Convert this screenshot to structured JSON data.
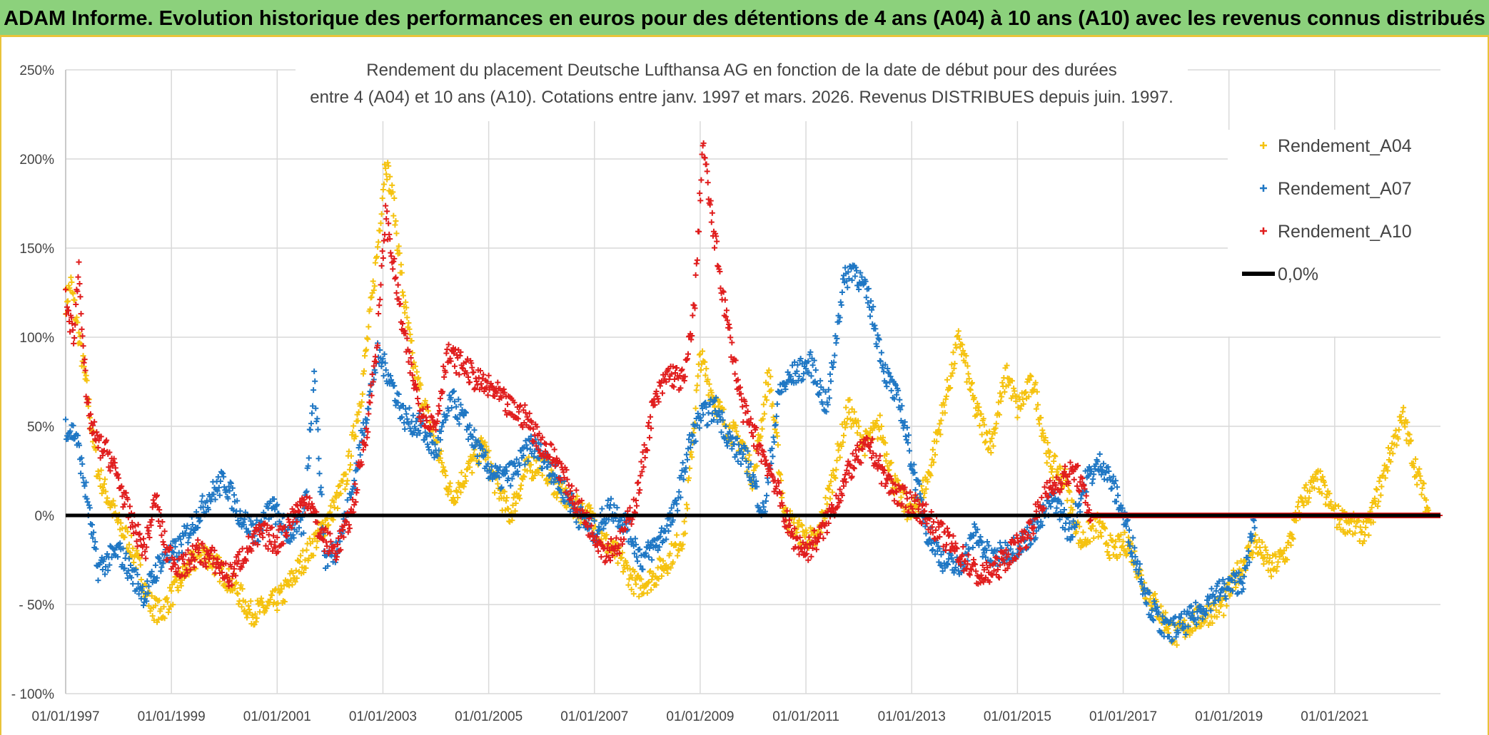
{
  "banner": {
    "title": "ADAM Informe. Evolution historique des performances en euros pour des détentions de 4 ans (A04) à 10 ans (A10) avec les revenus connus distribués"
  },
  "colors": {
    "A04": "#f5c20f",
    "A07": "#1f77c4",
    "A10": "#e01d1d",
    "zero": "#000000",
    "banner": "#8cd17c"
  },
  "chart_data": {
    "type": "scatter",
    "title_lines": [
      "Rendement du placement Deutsche Lufthansa AG en fonction de la date de début pour des durées",
      "entre 4 (A04) et 10 ans (A10). Cotations entre janv. 1997 et mars. 2026. Revenus DISTRIBUES depuis juin. 1997."
    ],
    "y_ticks": [
      "250%",
      "200%",
      "150%",
      "100%",
      "50%",
      "0%",
      "- 50%",
      "- 100%"
    ],
    "ylim": [
      -100,
      250
    ],
    "x_ticks": [
      "01/01/1997",
      "01/01/1999",
      "01/01/2001",
      "01/01/2003",
      "01/01/2005",
      "01/01/2007",
      "01/01/2009",
      "01/01/2011",
      "01/01/2013",
      "01/01/2015",
      "01/01/2017",
      "01/01/2019",
      "01/01/2021"
    ],
    "xlim": [
      1997.0,
      2023.0
    ],
    "legend_position": "top-right",
    "legend": [
      "Rendement_A04",
      "Rendement_A07",
      "Rendement_A10",
      "0,0%"
    ],
    "series": [
      {
        "name": "Rendement_A04",
        "marker": "+",
        "points": [
          [
            1997.0,
            120
          ],
          [
            1997.1,
            130
          ],
          [
            1997.25,
            100
          ],
          [
            1997.4,
            70
          ],
          [
            1997.6,
            25
          ],
          [
            1997.8,
            10
          ],
          [
            1998.0,
            -5
          ],
          [
            1998.2,
            -15
          ],
          [
            1998.4,
            -30
          ],
          [
            1998.6,
            -50
          ],
          [
            1998.8,
            -55
          ],
          [
            1999.0,
            -45
          ],
          [
            1999.3,
            -30
          ],
          [
            1999.6,
            -20
          ],
          [
            1999.9,
            -30
          ],
          [
            2000.2,
            -40
          ],
          [
            2000.5,
            -55
          ],
          [
            2000.8,
            -52
          ],
          [
            2001.1,
            -45
          ],
          [
            2001.4,
            -30
          ],
          [
            2001.7,
            -15
          ],
          [
            2002.0,
            0
          ],
          [
            2002.3,
            20
          ],
          [
            2002.6,
            70
          ],
          [
            2002.9,
            150
          ],
          [
            2003.05,
            200
          ],
          [
            2003.2,
            175
          ],
          [
            2003.4,
            120
          ],
          [
            2003.6,
            80
          ],
          [
            2003.8,
            60
          ],
          [
            2004.0,
            40
          ],
          [
            2004.3,
            10
          ],
          [
            2004.6,
            25
          ],
          [
            2004.9,
            40
          ],
          [
            2005.1,
            20
          ],
          [
            2005.4,
            0
          ],
          [
            2005.7,
            25
          ],
          [
            2006.0,
            30
          ],
          [
            2006.3,
            15
          ],
          [
            2006.6,
            5
          ],
          [
            2006.9,
            0
          ],
          [
            2007.2,
            -15
          ],
          [
            2007.5,
            -25
          ],
          [
            2007.8,
            -40
          ],
          [
            2008.1,
            -35
          ],
          [
            2008.4,
            -25
          ],
          [
            2008.7,
            -10
          ],
          [
            2009.0,
            90
          ],
          [
            2009.2,
            70
          ],
          [
            2009.5,
            50
          ],
          [
            2009.8,
            40
          ],
          [
            2010.0,
            20
          ],
          [
            2010.3,
            80
          ],
          [
            2010.6,
            0
          ],
          [
            2010.9,
            -10
          ],
          [
            2011.2,
            -15
          ],
          [
            2011.5,
            20
          ],
          [
            2011.8,
            60
          ],
          [
            2012.1,
            40
          ],
          [
            2012.4,
            50
          ],
          [
            2012.7,
            15
          ],
          [
            2013.0,
            0
          ],
          [
            2013.3,
            20
          ],
          [
            2013.6,
            60
          ],
          [
            2013.9,
            100
          ],
          [
            2014.2,
            60
          ],
          [
            2014.5,
            40
          ],
          [
            2014.8,
            80
          ],
          [
            2015.0,
            60
          ],
          [
            2015.3,
            75
          ],
          [
            2015.6,
            30
          ],
          [
            2015.9,
            20
          ],
          [
            2016.2,
            -15
          ],
          [
            2016.5,
            -5
          ],
          [
            2016.8,
            -20
          ],
          [
            2017.1,
            -15
          ],
          [
            2017.4,
            -40
          ],
          [
            2017.7,
            -55
          ],
          [
            2018.0,
            -68
          ],
          [
            2018.3,
            -60
          ],
          [
            2018.6,
            -55
          ],
          [
            2018.9,
            -50
          ],
          [
            2019.2,
            -30
          ],
          [
            2019.5,
            -15
          ],
          [
            2019.8,
            -30
          ],
          [
            2020.1,
            -20
          ],
          [
            2020.4,
            10
          ],
          [
            2020.7,
            20
          ],
          [
            2021.0,
            0
          ],
          [
            2021.3,
            -5
          ],
          [
            2021.6,
            -10
          ],
          [
            2021.9,
            20
          ],
          [
            2022.1,
            40
          ],
          [
            2022.3,
            55
          ],
          [
            2022.5,
            30
          ],
          [
            2022.8,
            0
          ],
          [
            2023.0,
            0
          ]
        ]
      },
      {
        "name": "Rendement_A07",
        "marker": "+",
        "points": [
          [
            1997.0,
            50
          ],
          [
            1997.2,
            45
          ],
          [
            1997.4,
            10
          ],
          [
            1997.6,
            -30
          ],
          [
            1997.8,
            -25
          ],
          [
            1998.0,
            -20
          ],
          [
            1998.2,
            -30
          ],
          [
            1998.5,
            -45
          ],
          [
            1998.8,
            -25
          ],
          [
            1999.1,
            -20
          ],
          [
            1999.4,
            -5
          ],
          [
            1999.7,
            10
          ],
          [
            2000.0,
            20
          ],
          [
            2000.3,
            0
          ],
          [
            2000.6,
            -10
          ],
          [
            2000.9,
            5
          ],
          [
            2001.2,
            -10
          ],
          [
            2001.5,
            -5
          ],
          [
            2001.7,
            80
          ],
          [
            2001.9,
            -25
          ],
          [
            2002.1,
            -20
          ],
          [
            2002.4,
            10
          ],
          [
            2002.7,
            60
          ],
          [
            2002.9,
            90
          ],
          [
            2003.1,
            80
          ],
          [
            2003.4,
            55
          ],
          [
            2003.7,
            50
          ],
          [
            2004.0,
            35
          ],
          [
            2004.3,
            65
          ],
          [
            2004.6,
            50
          ],
          [
            2004.9,
            30
          ],
          [
            2005.2,
            20
          ],
          [
            2005.5,
            25
          ],
          [
            2005.8,
            40
          ],
          [
            2006.1,
            30
          ],
          [
            2006.4,
            15
          ],
          [
            2006.7,
            0
          ],
          [
            2007.0,
            -10
          ],
          [
            2007.3,
            5
          ],
          [
            2007.6,
            -5
          ],
          [
            2007.9,
            -25
          ],
          [
            2008.2,
            -15
          ],
          [
            2008.5,
            0
          ],
          [
            2008.8,
            40
          ],
          [
            2009.0,
            55
          ],
          [
            2009.3,
            60
          ],
          [
            2009.6,
            40
          ],
          [
            2009.9,
            30
          ],
          [
            2010.2,
            0
          ],
          [
            2010.5,
            70
          ],
          [
            2010.8,
            80
          ],
          [
            2011.1,
            85
          ],
          [
            2011.4,
            60
          ],
          [
            2011.7,
            130
          ],
          [
            2011.9,
            140
          ],
          [
            2012.2,
            120
          ],
          [
            2012.5,
            80
          ],
          [
            2012.8,
            60
          ],
          [
            2013.0,
            30
          ],
          [
            2013.3,
            -10
          ],
          [
            2013.6,
            -25
          ],
          [
            2013.9,
            -30
          ],
          [
            2014.2,
            -10
          ],
          [
            2014.5,
            -25
          ],
          [
            2014.8,
            -20
          ],
          [
            2015.1,
            -15
          ],
          [
            2015.4,
            -5
          ],
          [
            2015.7,
            10
          ],
          [
            2016.0,
            -10
          ],
          [
            2016.3,
            20
          ],
          [
            2016.6,
            30
          ],
          [
            2016.9,
            10
          ],
          [
            2017.2,
            -20
          ],
          [
            2017.5,
            -50
          ],
          [
            2017.8,
            -65
          ],
          [
            2018.1,
            -62
          ],
          [
            2018.4,
            -55
          ],
          [
            2018.7,
            -45
          ],
          [
            2019.0,
            -40
          ],
          [
            2019.3,
            -35
          ],
          [
            2019.5,
            0
          ],
          [
            2023.0,
            0
          ]
        ]
      },
      {
        "name": "Rendement_A10",
        "marker": "+",
        "points": [
          [
            1997.0,
            120
          ],
          [
            1997.15,
            100
          ],
          [
            1997.25,
            140
          ],
          [
            1997.4,
            60
          ],
          [
            1997.6,
            40
          ],
          [
            1997.8,
            35
          ],
          [
            1998.0,
            20
          ],
          [
            1998.2,
            0
          ],
          [
            1998.5,
            -20
          ],
          [
            1998.7,
            10
          ],
          [
            1998.9,
            -20
          ],
          [
            1999.2,
            -30
          ],
          [
            1999.5,
            -20
          ],
          [
            1999.8,
            -25
          ],
          [
            2000.1,
            -35
          ],
          [
            2000.4,
            -20
          ],
          [
            2000.7,
            -10
          ],
          [
            2001.0,
            -15
          ],
          [
            2001.3,
            0
          ],
          [
            2001.6,
            10
          ],
          [
            2001.8,
            -10
          ],
          [
            2002.1,
            -20
          ],
          [
            2002.4,
            0
          ],
          [
            2002.7,
            50
          ],
          [
            2002.9,
            100
          ],
          [
            2003.05,
            170
          ],
          [
            2003.2,
            140
          ],
          [
            2003.4,
            100
          ],
          [
            2003.7,
            60
          ],
          [
            2004.0,
            50
          ],
          [
            2004.2,
            90
          ],
          [
            2004.5,
            85
          ],
          [
            2004.8,
            75
          ],
          [
            2005.1,
            70
          ],
          [
            2005.4,
            60
          ],
          [
            2005.7,
            55
          ],
          [
            2006.0,
            40
          ],
          [
            2006.3,
            30
          ],
          [
            2006.6,
            10
          ],
          [
            2006.9,
            -5
          ],
          [
            2007.2,
            -20
          ],
          [
            2007.5,
            -15
          ],
          [
            2007.8,
            10
          ],
          [
            2008.1,
            60
          ],
          [
            2008.4,
            80
          ],
          [
            2008.7,
            75
          ],
          [
            2008.9,
            120
          ],
          [
            2009.05,
            210
          ],
          [
            2009.2,
            170
          ],
          [
            2009.5,
            110
          ],
          [
            2009.8,
            60
          ],
          [
            2010.1,
            40
          ],
          [
            2010.4,
            20
          ],
          [
            2010.7,
            -10
          ],
          [
            2011.0,
            -20
          ],
          [
            2011.3,
            -10
          ],
          [
            2011.6,
            10
          ],
          [
            2011.9,
            30
          ],
          [
            2012.2,
            40
          ],
          [
            2012.5,
            20
          ],
          [
            2012.8,
            10
          ],
          [
            2013.1,
            5
          ],
          [
            2013.4,
            -5
          ],
          [
            2013.7,
            -15
          ],
          [
            2014.0,
            -25
          ],
          [
            2014.3,
            -35
          ],
          [
            2014.6,
            -30
          ],
          [
            2014.9,
            -20
          ],
          [
            2015.2,
            -10
          ],
          [
            2015.5,
            10
          ],
          [
            2015.8,
            20
          ],
          [
            2016.1,
            25
          ],
          [
            2016.4,
            0
          ],
          [
            2023.0,
            0
          ]
        ]
      }
    ]
  }
}
